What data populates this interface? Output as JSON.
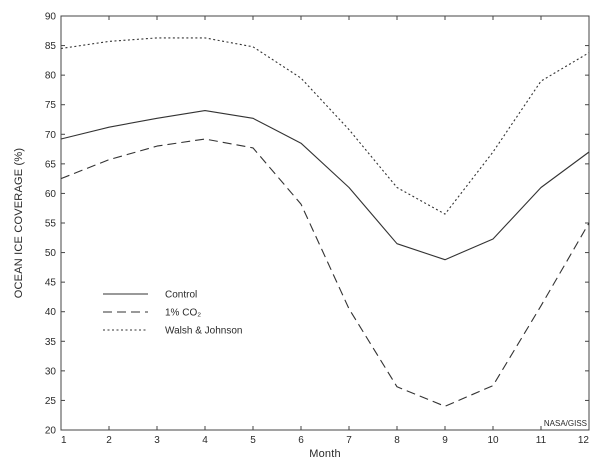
{
  "chart_data": {
    "type": "line",
    "title": "",
    "xlabel": "Month",
    "ylabel": "OCEAN ICE COVERAGE (%)",
    "x": [
      1,
      2,
      3,
      4,
      5,
      6,
      7,
      8,
      9,
      10,
      11,
      12
    ],
    "xlim": [
      1,
      12
    ],
    "ylim": [
      20,
      90
    ],
    "x_ticks": [
      "1",
      "2",
      "3",
      "4",
      "5",
      "6",
      "7",
      "8",
      "9",
      "10",
      "11",
      "12"
    ],
    "y_ticks": [
      "20",
      "25",
      "30",
      "35",
      "40",
      "45",
      "50",
      "55",
      "60",
      "65",
      "70",
      "75",
      "80",
      "85",
      "90"
    ],
    "grid": false,
    "legend_position": "lower-left",
    "series": [
      {
        "name": "Control",
        "style": "solid",
        "values": [
          69.2,
          71.2,
          72.7,
          74.0,
          72.7,
          68.5,
          61.0,
          51.5,
          48.8,
          52.3,
          61.0,
          67.0
        ]
      },
      {
        "name": "1% CO₂",
        "style": "dashed",
        "values": [
          62.5,
          65.7,
          68.0,
          69.2,
          67.7,
          58.2,
          40.5,
          27.3,
          24.0,
          27.5,
          41.0,
          55.0
        ]
      },
      {
        "name": "Walsh & Johnson",
        "style": "dotted",
        "values": [
          84.5,
          85.7,
          86.3,
          86.3,
          84.8,
          79.5,
          70.8,
          61.0,
          56.5,
          67.0,
          79.0,
          83.8
        ]
      }
    ],
    "annotation": "NASA/GISS",
    "line_color": "#333333"
  }
}
